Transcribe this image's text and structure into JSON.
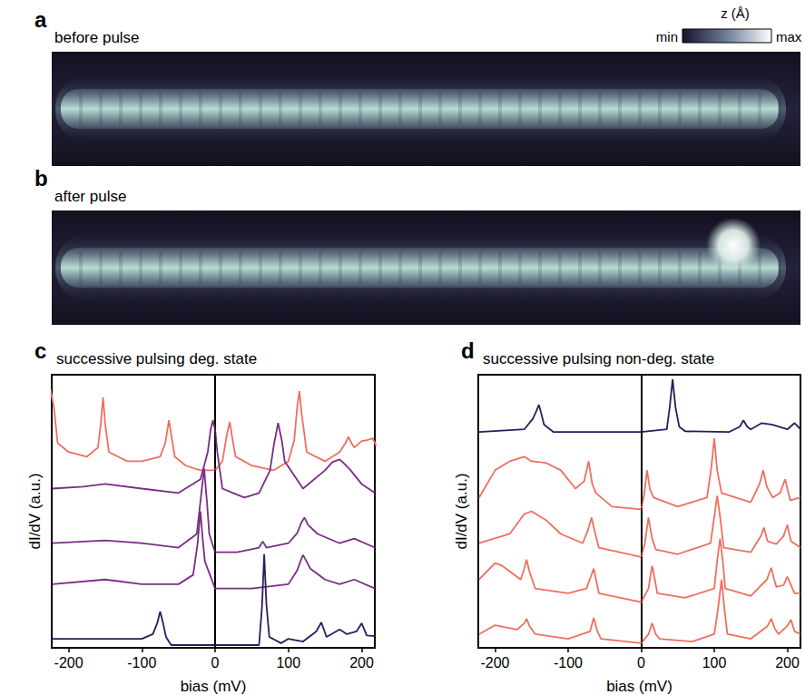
{
  "colorbar": {
    "label": "z (Å)",
    "min_label": "min",
    "max_label": "max"
  },
  "images": [
    {
      "letter": "a",
      "title": "before pulse"
    },
    {
      "letter": "b",
      "title": "after pulse"
    }
  ],
  "chart_data": [
    {
      "letter": "c",
      "type": "line",
      "title": "successive pulsing deg. state",
      "xlabel": "bias (mV)",
      "ylabel": "dI/dV (a.u.)",
      "xlim": [
        -223,
        218
      ],
      "xticks": [
        -200,
        -100,
        0,
        100,
        200
      ],
      "ylim": [
        0,
        10
      ],
      "tick_labels": "x",
      "grid": false,
      "reference_x": 0,
      "series": [
        {
          "color": "#ef6f5e",
          "x": [
            -225,
            -220,
            -215,
            -200,
            -175,
            -160,
            -156,
            -153,
            -150,
            -145,
            -120,
            -100,
            -75,
            -68,
            -63,
            -58,
            -55,
            -40,
            -20,
            0,
            10,
            16,
            20,
            24,
            28,
            50,
            80,
            100,
            108,
            112,
            115,
            118,
            125,
            150,
            170,
            178,
            182,
            186,
            190,
            200,
            207,
            215,
            220
          ],
          "values": [
            9.5,
            8.8,
            7.5,
            7.17,
            7.0,
            7.33,
            8.2,
            9.17,
            8.2,
            7.17,
            6.83,
            6.83,
            7.0,
            7.5,
            8.33,
            7.5,
            7.0,
            6.67,
            6.5,
            6.5,
            6.83,
            7.8,
            8.27,
            7.6,
            7.0,
            6.67,
            6.5,
            6.83,
            7.6,
            8.8,
            9.4,
            8.6,
            7.17,
            6.83,
            7.17,
            7.5,
            7.73,
            7.5,
            7.33,
            7.57,
            7.6,
            7.67,
            7.4
          ]
        },
        {
          "color": "#7a2d85",
          "x": [
            -222,
            -180,
            -150,
            -100,
            -50,
            -20,
            -10,
            -6,
            -3,
            0,
            3,
            10,
            40,
            60,
            75,
            80,
            86,
            91,
            95,
            120,
            150,
            160,
            170,
            178,
            185,
            200,
            218
          ],
          "values": [
            5.83,
            5.9,
            6.0,
            5.83,
            5.67,
            6.17,
            7.17,
            8.0,
            8.33,
            8.0,
            7.17,
            5.83,
            5.5,
            5.67,
            6.5,
            7.4,
            8.23,
            7.6,
            6.83,
            5.83,
            6.5,
            6.8,
            6.9,
            6.7,
            6.5,
            6.0,
            5.67
          ]
        },
        {
          "color": "#7a2d85",
          "x": [
            -222,
            -150,
            -100,
            -50,
            -25,
            -19,
            -15,
            -11,
            -8,
            0,
            30,
            60,
            65,
            70,
            100,
            112,
            118,
            122,
            127,
            140,
            170,
            190,
            218
          ],
          "values": [
            3.83,
            3.93,
            3.83,
            3.67,
            4.17,
            5.6,
            6.57,
            5.3,
            4.17,
            3.5,
            3.5,
            3.67,
            3.9,
            3.67,
            3.83,
            4.2,
            4.6,
            4.77,
            4.5,
            4.17,
            3.83,
            4.0,
            3.67
          ]
        },
        {
          "color": "#7a2d85",
          "x": [
            -222,
            -150,
            -100,
            -50,
            -30,
            -24,
            -20,
            -17,
            -14,
            0,
            50,
            100,
            112,
            117,
            120,
            124,
            130,
            150,
            170,
            190,
            218
          ],
          "values": [
            2.33,
            2.5,
            2.33,
            2.33,
            2.67,
            3.8,
            5.0,
            4.0,
            3.17,
            2.17,
            2.17,
            2.33,
            2.83,
            3.2,
            3.4,
            3.2,
            2.9,
            2.5,
            2.33,
            2.5,
            2.17
          ]
        },
        {
          "color": "#2d1a5e",
          "x": [
            -222,
            -100,
            -85,
            -79,
            -75,
            -71,
            -67,
            -60,
            0,
            60,
            64,
            67,
            70,
            74,
            90,
            100,
            120,
            138,
            145,
            152,
            170,
            180,
            193,
            200,
            207,
            218
          ],
          "values": [
            0.33,
            0.33,
            0.5,
            0.9,
            1.33,
            0.9,
            0.4,
            0.1,
            0.1,
            0.1,
            1.5,
            3.43,
            1.6,
            0.4,
            0.17,
            0.33,
            0.23,
            0.6,
            0.93,
            0.4,
            0.67,
            0.5,
            0.6,
            0.9,
            0.45,
            0.43
          ]
        }
      ]
    },
    {
      "letter": "d",
      "type": "line",
      "title": "successive pulsing non-deg. state",
      "xlabel": "bias (mV)",
      "ylabel": "dI/dV (a.u.)",
      "xlim": [
        -223,
        218
      ],
      "xticks": [
        -200,
        -100,
        0,
        100,
        200
      ],
      "ylim": [
        0,
        10
      ],
      "tick_labels": "x",
      "grid": false,
      "reference_x": 0,
      "series": [
        {
          "color": "#2d1a5e",
          "x": [
            -222,
            -160,
            -148,
            -143,
            -140,
            -137,
            -133,
            -120,
            0,
            35,
            39,
            43,
            47,
            52,
            60,
            120,
            135,
            140,
            145,
            150,
            165,
            180,
            200,
            210,
            218
          ],
          "values": [
            7.9,
            8.0,
            8.4,
            8.7,
            8.9,
            8.6,
            8.17,
            7.9,
            7.9,
            8.0,
            8.8,
            9.83,
            8.8,
            8.1,
            7.93,
            7.9,
            8.1,
            8.33,
            8.1,
            8.0,
            8.23,
            8.17,
            8.0,
            8.23,
            8.0
          ]
        },
        {
          "color": "#ef6f5e",
          "x": [
            -222,
            -200,
            -180,
            -160,
            -150,
            -130,
            -110,
            -90,
            -78,
            -72,
            -67,
            -62,
            -40,
            0,
            4,
            8,
            12,
            17,
            50,
            90,
            96,
            100,
            104,
            110,
            150,
            162,
            167,
            172,
            180,
            190,
            197,
            204,
            218
          ],
          "values": [
            5.5,
            6.5,
            6.83,
            7.0,
            6.83,
            6.77,
            6.5,
            5.83,
            6.1,
            6.83,
            6.0,
            5.67,
            5.17,
            5.07,
            5.6,
            6.5,
            5.8,
            5.5,
            5.17,
            5.5,
            6.6,
            7.67,
            6.5,
            5.67,
            5.33,
            6.0,
            6.5,
            5.9,
            5.5,
            5.67,
            6.17,
            5.4,
            5.5
          ]
        },
        {
          "color": "#ef6f5e",
          "x": [
            -222,
            -180,
            -160,
            -150,
            -130,
            -110,
            -80,
            -73,
            -68,
            -63,
            -58,
            0,
            5,
            10,
            15,
            20,
            50,
            95,
            100,
            104,
            108,
            113,
            150,
            164,
            168,
            173,
            185,
            195,
            200,
            205,
            218
          ],
          "values": [
            3.83,
            4.17,
            4.9,
            5.0,
            4.67,
            4.17,
            3.83,
            4.3,
            4.77,
            4.2,
            3.67,
            3.33,
            3.83,
            4.77,
            4.0,
            3.6,
            3.43,
            3.83,
            4.8,
            5.57,
            4.8,
            3.67,
            3.5,
            4.1,
            4.4,
            3.9,
            3.8,
            4.1,
            4.5,
            3.9,
            3.67
          ]
        },
        {
          "color": "#ef6f5e",
          "x": [
            -222,
            -200,
            -190,
            -165,
            -160,
            -157,
            -153,
            -145,
            -100,
            -75,
            -69,
            -65,
            -61,
            -58,
            0,
            10,
            13,
            15,
            18,
            22,
            60,
            100,
            104,
            108,
            112,
            115,
            150,
            172,
            178,
            182,
            185,
            195,
            200,
            205,
            210,
            218
          ],
          "values": [
            2.5,
            3.1,
            3.0,
            2.5,
            2.9,
            3.23,
            2.8,
            2.17,
            2.0,
            2.17,
            2.6,
            2.9,
            2.4,
            2.0,
            1.67,
            2.17,
            2.7,
            3.0,
            2.6,
            2.0,
            1.83,
            2.17,
            3.2,
            4.0,
            3.1,
            2.17,
            1.9,
            2.5,
            2.93,
            2.5,
            2.23,
            2.3,
            2.6,
            2.3,
            2.0,
            2.0
          ]
        },
        {
          "color": "#ef6f5e",
          "x": [
            -222,
            -200,
            -170,
            -160,
            -157,
            -153,
            -145,
            -100,
            -70,
            -65,
            -60,
            -55,
            0,
            10,
            15,
            20,
            25,
            70,
            100,
            105,
            110,
            114,
            118,
            150,
            173,
            178,
            183,
            188,
            200,
            205,
            210,
            218
          ],
          "values": [
            0.5,
            0.83,
            0.67,
            0.9,
            1.07,
            0.8,
            0.5,
            0.33,
            0.6,
            1.1,
            0.6,
            0.33,
            0.17,
            0.5,
            0.9,
            0.5,
            0.33,
            0.23,
            0.5,
            1.4,
            2.5,
            1.4,
            0.5,
            0.33,
            0.8,
            1.07,
            0.7,
            0.5,
            0.8,
            1.03,
            0.6,
            0.5
          ]
        }
      ]
    }
  ]
}
